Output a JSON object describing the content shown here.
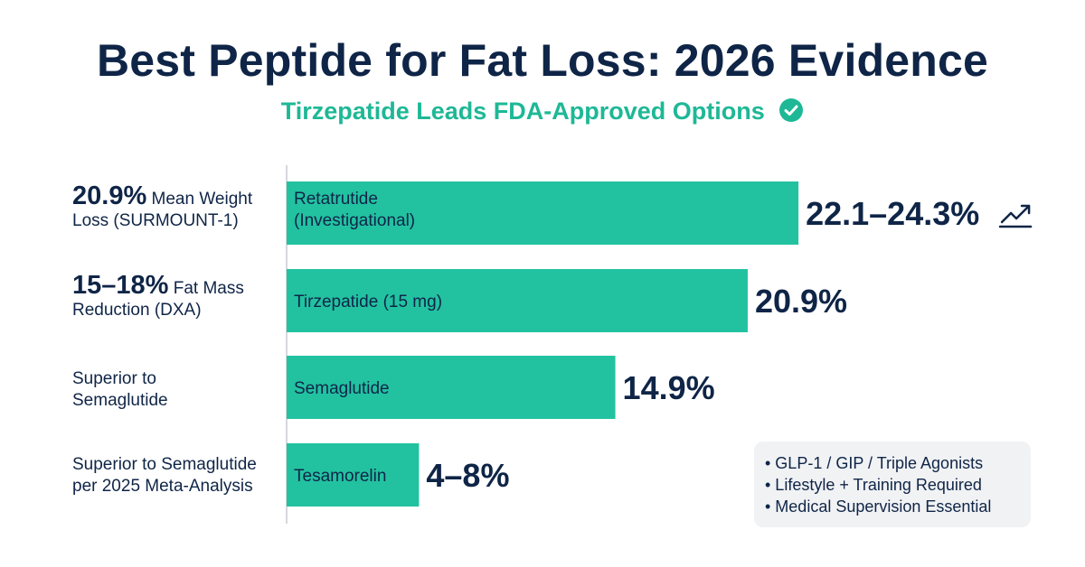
{
  "header": {
    "title": "Best Peptide for Fat Loss: 2026 Evidence",
    "subtitle": "Tirzepatide Leads FDA-Approved Options"
  },
  "left_notes": [
    {
      "big": "20.9%",
      "text": " Mean Weight Loss (SURMOUNT-1)"
    },
    {
      "big": "15–18%",
      "text": " Fat Mass Reduction (DXA)"
    },
    {
      "big": "",
      "text": "Superior to Semaglutide"
    },
    {
      "big": "",
      "text": "Superior to Semaglutide per 2025 Meta-Analysis"
    }
  ],
  "info_box": {
    "items": [
      "• GLP-1 / GIP / Triple Agonists",
      "• Lifestyle + Training Required",
      "• Medical Supervision Essential"
    ]
  },
  "colors": {
    "bar": "#22c2a1",
    "title": "#0f2547",
    "accent": "#1eb896"
  },
  "chart_data": {
    "type": "bar",
    "orientation": "horizontal",
    "categories": [
      "Retatrutide (Investigational)",
      "Tirzepatide (15 mg)",
      "Semaglutide",
      "Tesamorelin"
    ],
    "values": [
      23.2,
      20.9,
      14.9,
      6.0
    ],
    "value_labels": [
      "22.1–24.3%",
      "20.9%",
      "14.9%",
      "4–8%"
    ],
    "xlim": [
      0,
      30
    ],
    "grid": false,
    "trend_icon": "trending-up-icon"
  }
}
